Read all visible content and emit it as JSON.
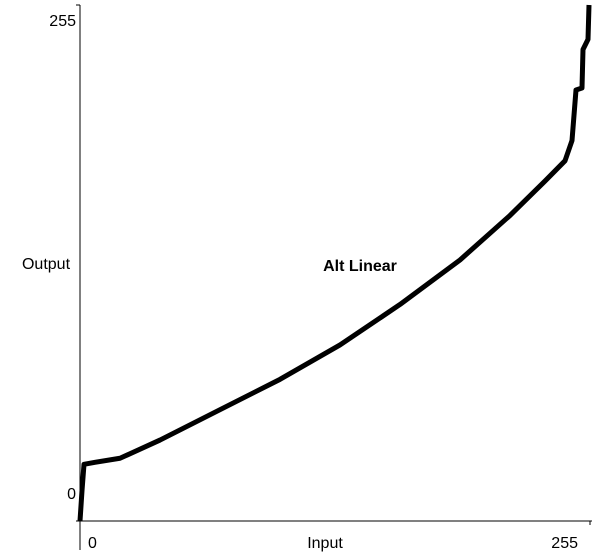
{
  "chart_data": {
    "type": "line",
    "annotation": "Alt Linear",
    "x_label": "Input",
    "y_label": "Output",
    "xlim": [
      0,
      255
    ],
    "ylim": [
      0,
      255
    ],
    "xticks": [
      0,
      255
    ],
    "yticks": [
      0,
      255
    ],
    "x": [
      0,
      1,
      2,
      7.5,
      20,
      40,
      70,
      100,
      130,
      160,
      190,
      215,
      232.5,
      242.5,
      246,
      248,
      251,
      251.5,
      254,
      254.5
    ],
    "values": [
      0,
      15,
      28,
      29,
      31,
      40,
      55,
      70,
      87,
      107,
      129,
      151,
      168,
      178,
      188,
      213,
      214,
      233,
      238,
      255
    ],
    "color": "#000000"
  }
}
